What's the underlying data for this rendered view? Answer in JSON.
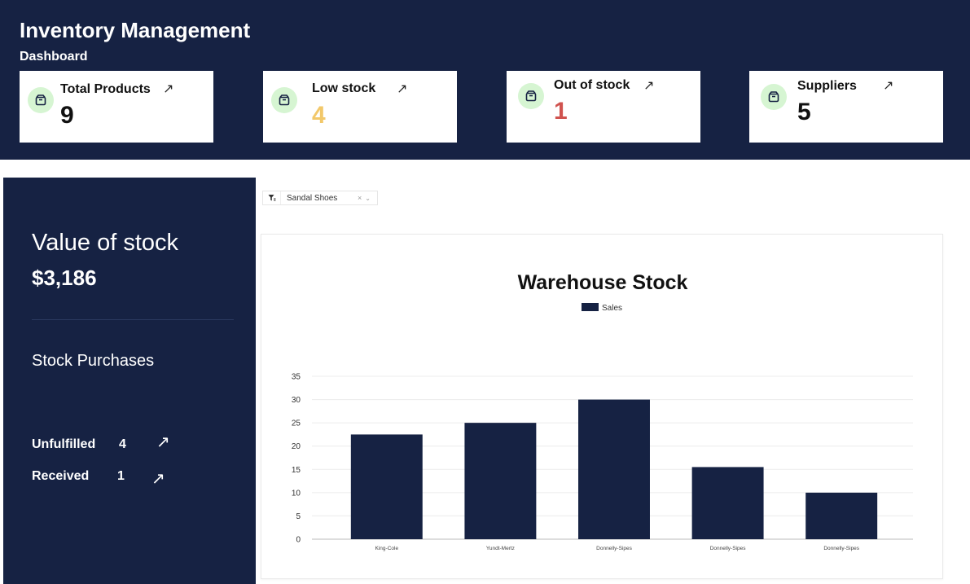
{
  "header": {
    "title": "Inventory Management",
    "subtitle": "Dashboard"
  },
  "cards": [
    {
      "label": "Total Products",
      "value": "9",
      "icon": "box-icon",
      "value_color": "#111111"
    },
    {
      "label": "Low stock",
      "value": "4",
      "icon": "box-icon",
      "value_color": "#f2c86a"
    },
    {
      "label": "Out of stock",
      "value": "1",
      "icon": "box-icon",
      "value_color": "#d0534f"
    },
    {
      "label": "Suppliers",
      "value": "5",
      "icon": "box-icon",
      "value_color": "#111111"
    }
  ],
  "sidebar": {
    "value_title": "Value of stock",
    "value_amount": "$3,186",
    "purchases_title": "Stock Purchases",
    "rows": [
      {
        "label": "Unfulfilled",
        "count": "4"
      },
      {
        "label": "Received",
        "count": "1"
      }
    ]
  },
  "filter": {
    "selected": "Sandal Shoes",
    "icon": "filter-icon"
  },
  "chart_data": {
    "type": "bar",
    "title": "Warehouse Stock",
    "categories": [
      "King-Cole",
      "Yundt-Mertz",
      "Donnelly-Sipes",
      "Donnelly-Sipes",
      "Donnelly-Sipes"
    ],
    "series": [
      {
        "name": "Sales",
        "values": [
          22.5,
          25,
          30,
          15.5,
          10
        ]
      }
    ],
    "ylim": [
      0,
      35
    ],
    "yticks": [
      0,
      5,
      10,
      15,
      20,
      25,
      30,
      35
    ],
    "legend": "top",
    "grid": true,
    "colors": {
      "bar": "#162243"
    }
  },
  "colors": {
    "navy": "#162243",
    "icon_bg": "#d6f5d2"
  }
}
